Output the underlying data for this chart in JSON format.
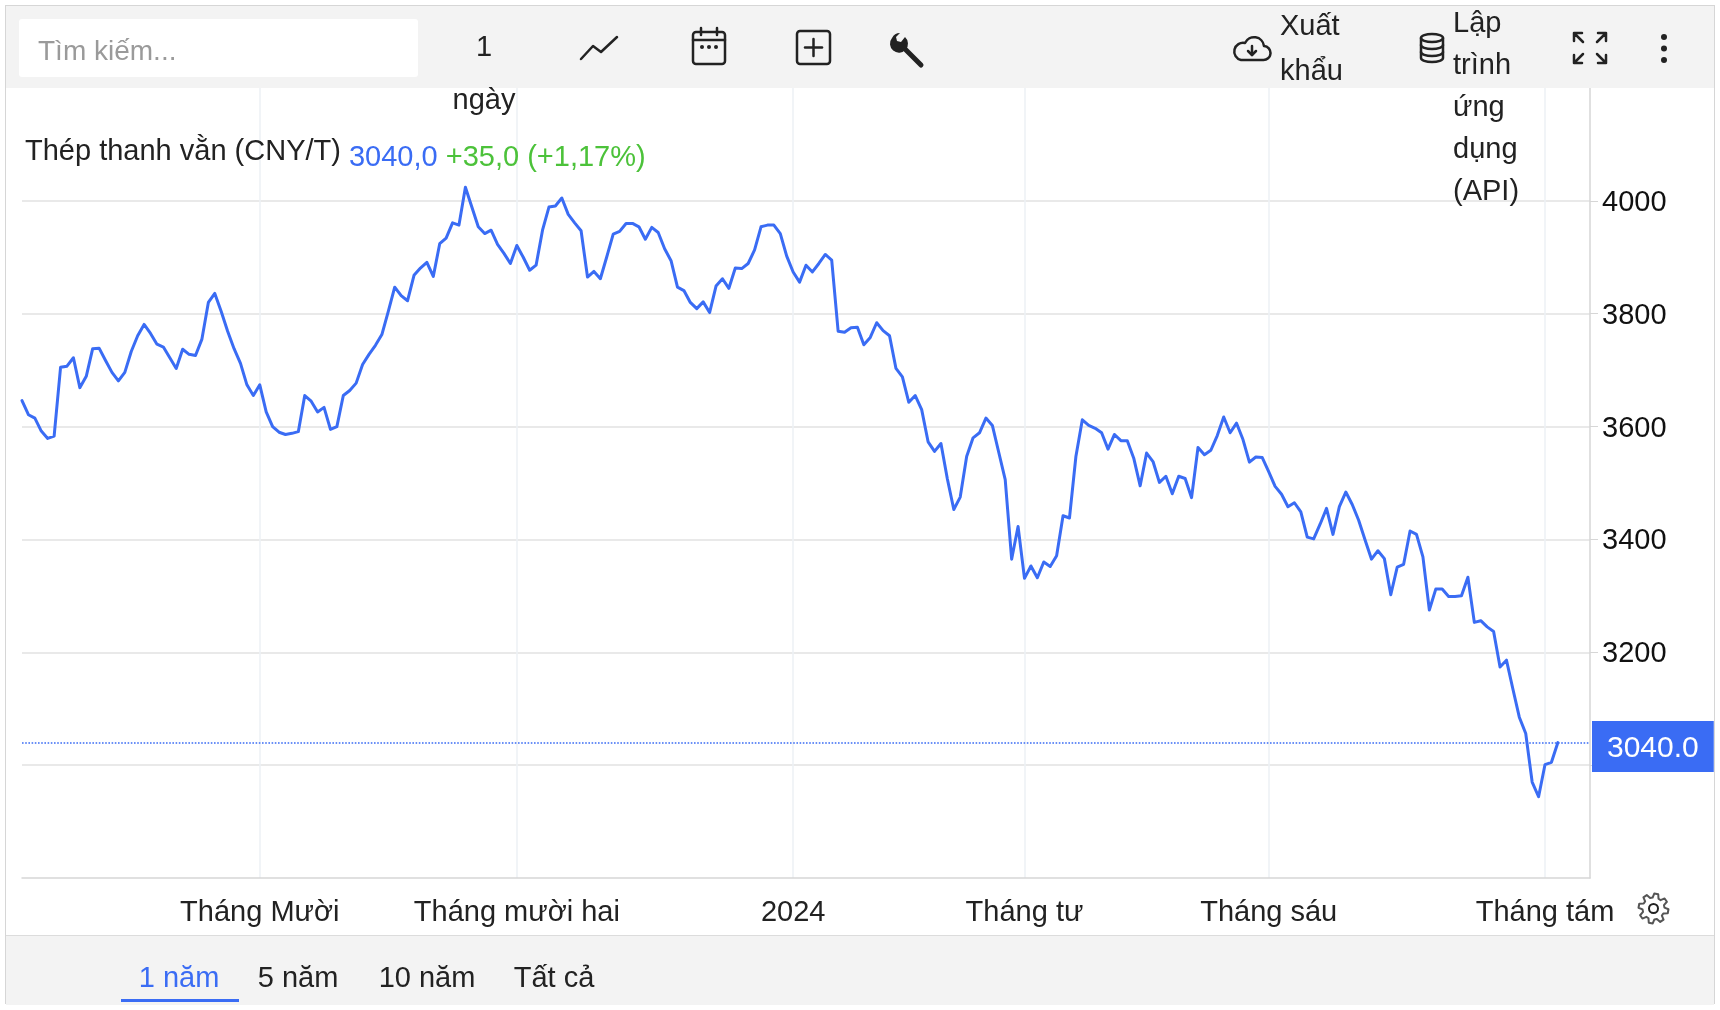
{
  "chart_data": {
    "type": "line",
    "title": "Thép thanh vằn (CNY/T)",
    "annotations": [
      "3040,0",
      "+35,0 (+1,17%)",
      "Tìm kiếm...",
      "1 ngày",
      "Xuất khẩu",
      "Lập trình ứng dụng (API)",
      "1 năm",
      "5 năm",
      "10 năm",
      "Tất cả"
    ],
    "categories": [
      null,
      null,
      null,
      null,
      null,
      null,
      null,
      null,
      null,
      null,
      null,
      null,
      null,
      null,
      null,
      null,
      null,
      null,
      null,
      null,
      null,
      null,
      null,
      null,
      null,
      null,
      null,
      null,
      null,
      null,
      null,
      null,
      null,
      null,
      null,
      null,
      null,
      "Tháng Mười",
      null,
      null,
      null,
      null,
      null,
      null,
      null,
      null,
      null,
      null,
      null,
      null,
      null,
      null,
      null,
      null,
      null,
      null,
      null,
      null,
      null,
      null,
      null,
      null,
      null,
      null,
      null,
      null,
      null,
      null,
      null,
      null,
      null,
      null,
      null,
      null,
      null,
      null,
      null,
      "Tháng mười hai",
      null,
      null,
      null,
      null,
      null,
      null,
      null,
      null,
      null,
      null,
      null,
      null,
      null,
      null,
      null,
      null,
      null,
      null,
      null,
      null,
      null,
      null,
      null,
      null,
      null,
      null,
      null,
      null,
      null,
      null,
      null,
      null,
      null,
      null,
      null,
      null,
      null,
      null,
      null,
      null,
      null,
      null,
      "2024",
      null,
      null,
      null,
      null,
      null,
      null,
      null,
      null,
      null,
      null,
      null,
      null,
      null,
      null,
      null,
      null,
      null,
      null,
      null,
      null,
      null,
      null,
      null,
      null,
      null,
      null,
      null,
      null,
      null,
      null,
      null,
      null,
      null,
      null,
      null,
      "Tháng tư",
      null,
      null,
      null,
      null,
      null,
      null,
      null,
      null,
      null,
      null,
      null,
      null,
      null,
      null,
      null,
      null,
      null,
      null,
      null,
      null,
      null,
      null,
      null,
      null,
      null,
      null,
      null,
      null,
      null,
      null,
      null,
      null,
      null,
      null,
      null,
      null,
      null,
      "Tháng sáu",
      null,
      null,
      null,
      null,
      null,
      null,
      null,
      null,
      null,
      null,
      null,
      null,
      null,
      null,
      null,
      null,
      null,
      null,
      null,
      null,
      null,
      null,
      null,
      null,
      null,
      null,
      null,
      null,
      null,
      null,
      null,
      null,
      null,
      null,
      null,
      null,
      null,
      null,
      null,
      null,
      null,
      null,
      "Tháng tám",
      null,
      null,
      null,
      null,
      null,
      null,
      null
    ],
    "values": [
      3646,
      3621,
      3615,
      3592,
      3579,
      3583,
      3705,
      3707,
      3722,
      3669,
      3689,
      3738,
      3739,
      3717,
      3696,
      3681,
      3696,
      3733,
      3761,
      3781,
      3765,
      3746,
      3741,
      3722,
      3703,
      3737,
      3728,
      3726,
      3755,
      3820,
      3836,
      3804,
      3769,
      3738,
      3712,
      3674,
      3655,
      3674,
      3626,
      3600,
      3590,
      3586,
      3588,
      3591,
      3655,
      3645,
      3626,
      3634,
      3595,
      3600,
      3655,
      3664,
      3677,
      3710,
      3728,
      3744,
      3763,
      3804,
      3847,
      3832,
      3823,
      3868,
      3881,
      3891,
      3866,
      3924,
      3934,
      3961,
      3957,
      4024,
      3989,
      3954,
      3942,
      3948,
      3923,
      3907,
      3889,
      3921,
      3900,
      3877,
      3886,
      3948,
      3989,
      3991,
      4005,
      3976,
      3961,
      3947,
      3865,
      3875,
      3862,
      3901,
      3941,
      3946,
      3960,
      3960,
      3954,
      3932,
      3953,
      3944,
      3915,
      3894,
      3847,
      3841,
      3820,
      3809,
      3821,
      3802,
      3849,
      3862,
      3845,
      3881,
      3880,
      3889,
      3913,
      3954,
      3957,
      3957,
      3942,
      3902,
      3874,
      3856,
      3886,
      3874,
      3889,
      3905,
      3895,
      3769,
      3767,
      3775,
      3776,
      3745,
      3758,
      3784,
      3770,
      3761,
      3703,
      3688,
      3643,
      3655,
      3630,
      3573,
      3556,
      3570,
      3507,
      3453,
      3475,
      3547,
      3580,
      3589,
      3615,
      3602,
      3554,
      3506,
      3365,
      3423,
      3331,
      3353,
      3332,
      3360,
      3352,
      3371,
      3442,
      3438,
      3547,
      3612,
      3602,
      3597,
      3589,
      3560,
      3586,
      3575,
      3575,
      3544,
      3495,
      3553,
      3538,
      3501,
      3512,
      3481,
      3512,
      3508,
      3474,
      3563,
      3550,
      3558,
      3584,
      3617,
      3589,
      3606,
      3577,
      3537,
      3546,
      3545,
      3520,
      3494,
      3480,
      3458,
      3465,
      3449,
      3404,
      3401,
      3427,
      3455,
      3409,
      3458,
      3484,
      3462,
      3434,
      3399,
      3365,
      3380,
      3366,
      3302,
      3351,
      3356,
      3415,
      3409,
      3369,
      3275,
      3312,
      3312,
      3299,
      3299,
      3300,
      3333,
      3253,
      3256,
      3245,
      3237,
      3174,
      3186,
      3135,
      3085,
      3056,
      2970,
      2944,
      3001,
      3005,
      3040,
      null,
      null,
      null,
      null,
      null
    ],
    "color": "#3a6cf4",
    "ylim": [
      2800,
      4200
    ],
    "yticks": [
      {
        "value": 3000,
        "label": null
      },
      3200,
      3400,
      3600,
      3800,
      4000
    ],
    "ref_lines": [
      {
        "axis": "y",
        "value": 3040,
        "label": "3040.0",
        "color": "#3a6cf4",
        "line_style": "dotted"
      }
    ],
    "grid": true,
    "marker": "none"
  }
}
